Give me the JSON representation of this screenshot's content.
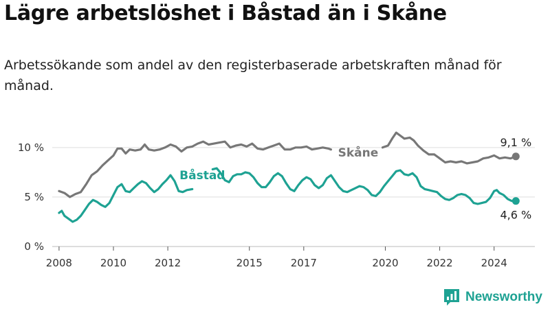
{
  "title": "Lägre arbetslöshet i Båstad än i Skåne",
  "subtitle": "Arbetssökande som andel av den registerbaserade arbetskraften månad för månad.",
  "brand": "Newsworthy",
  "colors": {
    "bastad": "#1ea293",
    "skane": "#777777",
    "grid": "#dddddd"
  },
  "chart_data": {
    "type": "line",
    "title": "Lägre arbetslöshet i Båstad än i Skåne",
    "xlabel": "",
    "ylabel": "",
    "ylim": [
      0,
      12
    ],
    "xlim": [
      2007.75,
      2025.5
    ],
    "y_ticks": [
      {
        "value": 0,
        "label": "0 %"
      },
      {
        "value": 5,
        "label": "5 %"
      },
      {
        "value": 10,
        "label": "10 %"
      }
    ],
    "x_ticks": [
      {
        "value": 2008,
        "label": "2008"
      },
      {
        "value": 2010,
        "label": "2010"
      },
      {
        "value": 2012,
        "label": "2012"
      },
      {
        "value": 2015,
        "label": "2015"
      },
      {
        "value": 2017,
        "label": "2017"
      },
      {
        "value": 2020,
        "label": "2020"
      },
      {
        "value": 2022,
        "label": "2022"
      },
      {
        "value": 2024,
        "label": "2024"
      }
    ],
    "series": [
      {
        "name": "Skåne",
        "label": "Skåne",
        "color": "#777777",
        "end_label": "9,1 %",
        "gap": [
          2018.0,
          2019.9
        ],
        "points": [
          [
            2008.0,
            5.6
          ],
          [
            2008.2,
            5.4
          ],
          [
            2008.4,
            5.0
          ],
          [
            2008.6,
            5.3
          ],
          [
            2008.8,
            5.5
          ],
          [
            2009.0,
            6.3
          ],
          [
            2009.2,
            7.2
          ],
          [
            2009.4,
            7.6
          ],
          [
            2009.6,
            8.2
          ],
          [
            2009.8,
            8.7
          ],
          [
            2010.0,
            9.2
          ],
          [
            2010.15,
            9.9
          ],
          [
            2010.3,
            9.9
          ],
          [
            2010.45,
            9.4
          ],
          [
            2010.6,
            9.8
          ],
          [
            2010.8,
            9.7
          ],
          [
            2011.0,
            9.8
          ],
          [
            2011.15,
            10.3
          ],
          [
            2011.3,
            9.8
          ],
          [
            2011.5,
            9.7
          ],
          [
            2011.7,
            9.8
          ],
          [
            2011.9,
            10.0
          ],
          [
            2012.1,
            10.3
          ],
          [
            2012.3,
            10.1
          ],
          [
            2012.5,
            9.6
          ],
          [
            2012.7,
            10.0
          ],
          [
            2012.9,
            10.1
          ],
          [
            2013.1,
            10.4
          ],
          [
            2013.3,
            10.6
          ],
          [
            2013.5,
            10.3
          ],
          [
            2013.7,
            10.4
          ],
          [
            2013.9,
            10.5
          ],
          [
            2014.1,
            10.6
          ],
          [
            2014.3,
            10.0
          ],
          [
            2014.5,
            10.2
          ],
          [
            2014.7,
            10.3
          ],
          [
            2014.9,
            10.1
          ],
          [
            2015.1,
            10.4
          ],
          [
            2015.3,
            9.9
          ],
          [
            2015.5,
            9.8
          ],
          [
            2015.7,
            10.0
          ],
          [
            2015.9,
            10.2
          ],
          [
            2016.1,
            10.4
          ],
          [
            2016.3,
            9.8
          ],
          [
            2016.5,
            9.8
          ],
          [
            2016.7,
            10.0
          ],
          [
            2016.9,
            10.0
          ],
          [
            2017.1,
            10.1
          ],
          [
            2017.3,
            9.8
          ],
          [
            2017.5,
            9.9
          ],
          [
            2017.7,
            10.0
          ],
          [
            2017.9,
            9.9
          ],
          [
            2018.0,
            9.8
          ],
          [
            2019.9,
            10.0
          ],
          [
            2020.1,
            10.2
          ],
          [
            2020.25,
            10.9
          ],
          [
            2020.4,
            11.5
          ],
          [
            2020.55,
            11.2
          ],
          [
            2020.7,
            10.9
          ],
          [
            2020.9,
            11.0
          ],
          [
            2021.05,
            10.7
          ],
          [
            2021.2,
            10.2
          ],
          [
            2021.4,
            9.7
          ],
          [
            2021.6,
            9.3
          ],
          [
            2021.8,
            9.3
          ],
          [
            2022.0,
            8.9
          ],
          [
            2022.2,
            8.5
          ],
          [
            2022.4,
            8.6
          ],
          [
            2022.6,
            8.5
          ],
          [
            2022.8,
            8.6
          ],
          [
            2023.0,
            8.4
          ],
          [
            2023.2,
            8.5
          ],
          [
            2023.4,
            8.6
          ],
          [
            2023.6,
            8.9
          ],
          [
            2023.8,
            9.0
          ],
          [
            2024.0,
            9.2
          ],
          [
            2024.2,
            8.9
          ],
          [
            2024.4,
            9.0
          ],
          [
            2024.6,
            8.9
          ],
          [
            2024.8,
            9.1
          ]
        ]
      },
      {
        "name": "Båstad",
        "label": "Båstad",
        "color": "#1ea293",
        "end_label": "4,6 %",
        "gap": [
          2012.9,
          2013.65
        ],
        "points": [
          [
            2008.0,
            3.4
          ],
          [
            2008.1,
            3.6
          ],
          [
            2008.2,
            3.1
          ],
          [
            2008.35,
            2.8
          ],
          [
            2008.5,
            2.5
          ],
          [
            2008.65,
            2.7
          ],
          [
            2008.8,
            3.1
          ],
          [
            2008.95,
            3.7
          ],
          [
            2009.1,
            4.3
          ],
          [
            2009.25,
            4.7
          ],
          [
            2009.4,
            4.5
          ],
          [
            2009.55,
            4.2
          ],
          [
            2009.7,
            4.0
          ],
          [
            2009.85,
            4.4
          ],
          [
            2010.0,
            5.2
          ],
          [
            2010.15,
            6.0
          ],
          [
            2010.3,
            6.3
          ],
          [
            2010.45,
            5.6
          ],
          [
            2010.6,
            5.5
          ],
          [
            2010.75,
            5.9
          ],
          [
            2010.9,
            6.3
          ],
          [
            2011.05,
            6.6
          ],
          [
            2011.2,
            6.4
          ],
          [
            2011.35,
            5.9
          ],
          [
            2011.5,
            5.5
          ],
          [
            2011.65,
            5.8
          ],
          [
            2011.8,
            6.3
          ],
          [
            2011.95,
            6.7
          ],
          [
            2012.1,
            7.2
          ],
          [
            2012.25,
            6.6
          ],
          [
            2012.4,
            5.6
          ],
          [
            2012.55,
            5.5
          ],
          [
            2012.7,
            5.7
          ],
          [
            2012.9,
            5.8
          ],
          [
            2013.65,
            7.8
          ],
          [
            2013.8,
            7.9
          ],
          [
            2013.95,
            7.4
          ],
          [
            2014.1,
            6.7
          ],
          [
            2014.25,
            6.5
          ],
          [
            2014.4,
            7.1
          ],
          [
            2014.55,
            7.3
          ],
          [
            2014.7,
            7.3
          ],
          [
            2014.85,
            7.5
          ],
          [
            2015.0,
            7.4
          ],
          [
            2015.15,
            7.0
          ],
          [
            2015.3,
            6.4
          ],
          [
            2015.45,
            6.0
          ],
          [
            2015.6,
            6.0
          ],
          [
            2015.75,
            6.5
          ],
          [
            2015.9,
            7.1
          ],
          [
            2016.05,
            7.4
          ],
          [
            2016.2,
            7.1
          ],
          [
            2016.35,
            6.4
          ],
          [
            2016.5,
            5.8
          ],
          [
            2016.65,
            5.6
          ],
          [
            2016.8,
            6.2
          ],
          [
            2016.95,
            6.7
          ],
          [
            2017.1,
            7.0
          ],
          [
            2017.25,
            6.8
          ],
          [
            2017.4,
            6.2
          ],
          [
            2017.55,
            5.9
          ],
          [
            2017.7,
            6.2
          ],
          [
            2017.85,
            6.9
          ],
          [
            2018.0,
            7.2
          ],
          [
            2018.15,
            6.6
          ],
          [
            2018.3,
            6.0
          ],
          [
            2018.45,
            5.6
          ],
          [
            2018.6,
            5.5
          ],
          [
            2018.75,
            5.7
          ],
          [
            2018.9,
            5.9
          ],
          [
            2019.05,
            6.1
          ],
          [
            2019.2,
            6.0
          ],
          [
            2019.35,
            5.7
          ],
          [
            2019.5,
            5.2
          ],
          [
            2019.65,
            5.1
          ],
          [
            2019.8,
            5.5
          ],
          [
            2019.95,
            6.1
          ],
          [
            2020.1,
            6.6
          ],
          [
            2020.25,
            7.1
          ],
          [
            2020.4,
            7.6
          ],
          [
            2020.55,
            7.7
          ],
          [
            2020.7,
            7.3
          ],
          [
            2020.85,
            7.2
          ],
          [
            2021.0,
            7.4
          ],
          [
            2021.15,
            7.0
          ],
          [
            2021.3,
            6.1
          ],
          [
            2021.45,
            5.8
          ],
          [
            2021.6,
            5.7
          ],
          [
            2021.75,
            5.6
          ],
          [
            2021.9,
            5.5
          ],
          [
            2022.05,
            5.1
          ],
          [
            2022.2,
            4.8
          ],
          [
            2022.35,
            4.7
          ],
          [
            2022.5,
            4.9
          ],
          [
            2022.65,
            5.2
          ],
          [
            2022.8,
            5.3
          ],
          [
            2022.95,
            5.2
          ],
          [
            2023.1,
            4.9
          ],
          [
            2023.25,
            4.4
          ],
          [
            2023.4,
            4.3
          ],
          [
            2023.55,
            4.4
          ],
          [
            2023.7,
            4.5
          ],
          [
            2023.85,
            4.9
          ],
          [
            2024.0,
            5.6
          ],
          [
            2024.1,
            5.7
          ],
          [
            2024.2,
            5.4
          ],
          [
            2024.35,
            5.2
          ],
          [
            2024.5,
            4.8
          ],
          [
            2024.65,
            4.6
          ],
          [
            2024.8,
            4.6
          ]
        ]
      }
    ]
  }
}
